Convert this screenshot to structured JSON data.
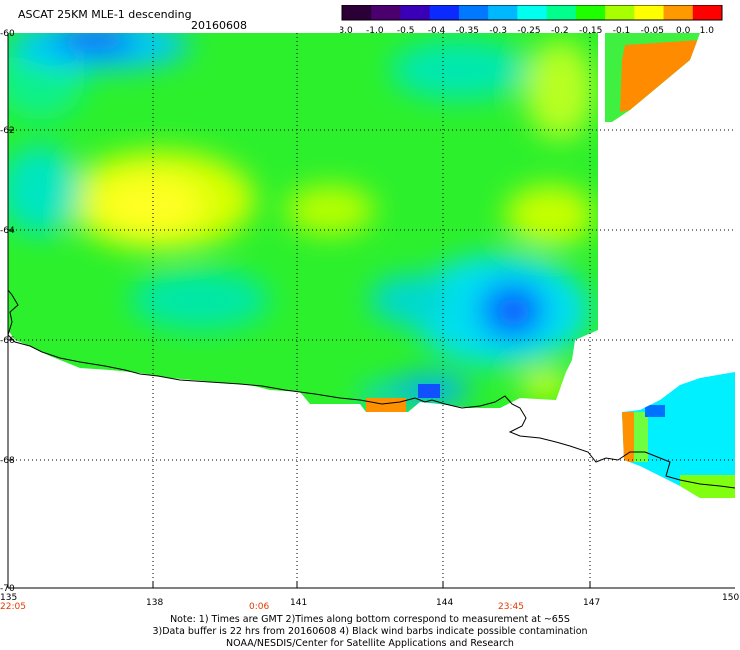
{
  "header": {
    "title": "ASCAT 25KM MLE-1 descending",
    "date": "20160608"
  },
  "colorbar": {
    "labels": [
      "-3.0",
      "-1.0",
      "-0.5",
      "-0.4",
      "-0.35",
      "-0.3",
      "-0.25",
      "-0.2",
      "-0.15",
      "-0.1",
      "-0.05",
      "0.0",
      "1.0"
    ],
    "colors": [
      "#2b0036",
      "#4a006e",
      "#3a00b8",
      "#0a2aff",
      "#0078ff",
      "#00b8ff",
      "#00ffee",
      "#00ff8c",
      "#20ff00",
      "#a8ff00",
      "#ffff00",
      "#ff9900",
      "#ff0000"
    ]
  },
  "map": {
    "lat_labels": [
      "-60",
      "-62",
      "-64",
      "-66",
      "-68",
      "-70"
    ],
    "lon_labels": [
      "135",
      "138",
      "141",
      "144",
      "147",
      "150"
    ],
    "time_labels": [
      "22:05",
      "0:06",
      "23:45"
    ],
    "land_color": "#ffffff",
    "coast_color": "#000000"
  },
  "footer": {
    "line1": "Note: 1) Times are GMT 2)Times along bottom correspond to measurement at ~65S",
    "line2": "3)Data buffer is 22 hrs from 20160608 4) Black wind barbs indicate possible contamination",
    "line3": "NOAA/NESDIS/Center for Satellite Applications and Research"
  }
}
